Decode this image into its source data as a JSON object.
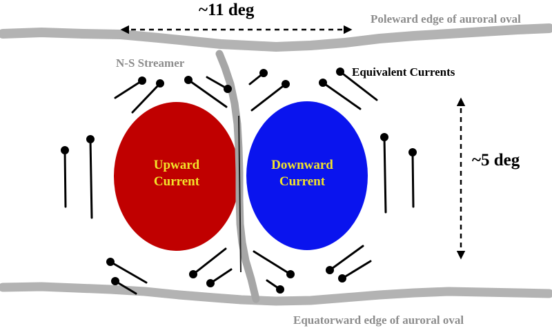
{
  "labels": {
    "width_measure": "~11 deg",
    "height_measure": "~5 deg",
    "poleward_edge": "Poleward edge of auroral oval",
    "equatorward_edge": "Equatorward edge of auroral oval",
    "streamer": "N-S Streamer",
    "equivalent_currents": "Equivalent Currents",
    "upward_line1": "Upward",
    "upward_line2": "Current",
    "downward_line1": "Downward",
    "downward_line2": "Current"
  },
  "colors": {
    "upward_current": "#c00000",
    "downward_current": "#0a14ee",
    "boundary": "#b3b3b3",
    "streamer": "#a6a6a6",
    "current_label_text": "#f2e22a",
    "boundary_label_text": "#8c8c8c"
  },
  "icons": {
    "width_arrow": "double-headed-dashed-horizontal-arrow",
    "height_arrow": "double-headed-dashed-vertical-arrow",
    "current_vector": "pin-line-vector"
  }
}
